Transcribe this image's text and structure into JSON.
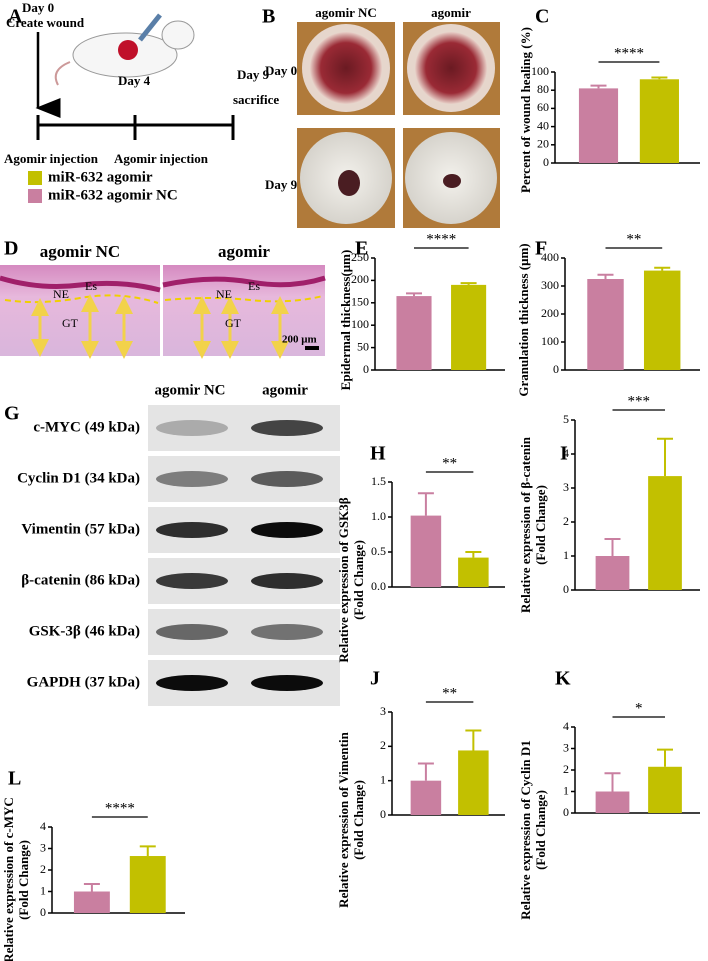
{
  "timeline": {
    "panel": "A",
    "day0": "Day 0",
    "create": "Create wound",
    "day4": "Day 4",
    "day9": "Day 9",
    "sacrifice": "sacrifice",
    "injection1": "Agomir injection",
    "injection2": "Agomir injection"
  },
  "legend": [
    {
      "label": "miR-632 agomir",
      "color": "#c2c000"
    },
    {
      "label": "miR-632 agomir NC",
      "color": "#c97fa0"
    }
  ],
  "wound_photos": {
    "panel": "B",
    "columns": [
      "agomir NC",
      "agomir"
    ],
    "rows": [
      "Day 0",
      "Day 9"
    ]
  },
  "histology": {
    "panel": "D",
    "images": [
      {
        "title": "agomir NC",
        "labels": [
          "NE",
          "Es",
          "GT"
        ]
      },
      {
        "title": "agomir",
        "labels": [
          "NE",
          "Es",
          "GT"
        ]
      }
    ],
    "scale": "200 μm"
  },
  "western_blot": {
    "panel": "G",
    "columns": [
      "agomir NC",
      "agomir"
    ],
    "rows": [
      "c-MYC (49 kDa)",
      "Cyclin D1 (34 kDa)",
      "Vimentin (57 kDa)",
      "β-catenin (86 kDa)",
      "GSK-3β (46 kDa)",
      "GAPDH (37 kDa)"
    ]
  },
  "chart_data": [
    {
      "type": "bar",
      "panel": "C",
      "ylabel": [
        "Percent of wound healing (%)"
      ],
      "values": [
        82,
        92
      ],
      "errors": [
        3,
        2
      ],
      "colors": [
        "#c97fa0",
        "#c2c000"
      ],
      "ylim": [
        0,
        100
      ],
      "yticks": [
        0,
        20,
        40,
        60,
        80,
        100
      ],
      "annotation": "****"
    },
    {
      "type": "bar",
      "panel": "E",
      "ylabel": [
        "Epidermal thickness(μm)"
      ],
      "values": [
        165,
        190
      ],
      "errors": [
        6,
        4
      ],
      "colors": [
        "#c97fa0",
        "#c2c000"
      ],
      "ylim": [
        0,
        250
      ],
      "yticks": [
        0,
        50,
        100,
        150,
        200,
        250
      ],
      "annotation": "****"
    },
    {
      "type": "bar",
      "panel": "F",
      "ylabel": [
        "Granulation thickness (μm)"
      ],
      "values": [
        325,
        355
      ],
      "errors": [
        15,
        10
      ],
      "colors": [
        "#c97fa0",
        "#c2c000"
      ],
      "ylim": [
        0,
        400
      ],
      "yticks": [
        0,
        100,
        200,
        300,
        400
      ],
      "annotation": "**"
    },
    {
      "type": "bar",
      "panel": "H",
      "ylabel": [
        "Relative expression of GSK3β",
        "(Fold Change)"
      ],
      "values": [
        1.02,
        0.42
      ],
      "errors": [
        0.32,
        0.08
      ],
      "colors": [
        "#c97fa0",
        "#c2c000"
      ],
      "ylim": [
        0,
        1.5
      ],
      "yticks": [
        {
          "value": 0,
          "label": "0.0"
        },
        0.5,
        {
          "value": 1,
          "label": "1.0"
        },
        1.5
      ],
      "annotation": "**"
    },
    {
      "type": "bar",
      "panel": "I",
      "ylabel": [
        "Relative expression of β-catenin",
        "(Fold Change)"
      ],
      "values": [
        1.0,
        3.35
      ],
      "errors": [
        0.5,
        1.1
      ],
      "colors": [
        "#c97fa0",
        "#c2c000"
      ],
      "ylim": [
        0,
        5
      ],
      "yticks": [
        0,
        1,
        2,
        3,
        4,
        5
      ],
      "annotation": "***"
    },
    {
      "type": "bar",
      "panel": "J",
      "ylabel": [
        "Relative expression of  Vimentin",
        "(Fold Change)"
      ],
      "values": [
        1.0,
        1.88
      ],
      "errors": [
        0.5,
        0.58
      ],
      "colors": [
        "#c97fa0",
        "#c2c000"
      ],
      "ylim": [
        0,
        3
      ],
      "yticks": [
        0,
        1,
        2,
        3
      ],
      "annotation": "**"
    },
    {
      "type": "bar",
      "panel": "K",
      "ylabel": [
        "Relative expression of Cyclin D1",
        "(Fold Change)"
      ],
      "values": [
        1.0,
        2.15
      ],
      "errors": [
        0.85,
        0.8
      ],
      "colors": [
        "#c97fa0",
        "#c2c000"
      ],
      "ylim": [
        0,
        4
      ],
      "yticks": [
        0,
        1,
        2,
        3,
        4
      ],
      "annotation": "*"
    },
    {
      "type": "bar",
      "panel": "L",
      "ylabel": [
        "Relative expression of c-MYC",
        "(Fold Change)"
      ],
      "values": [
        1.0,
        2.65
      ],
      "errors": [
        0.35,
        0.45
      ],
      "colors": [
        "#c97fa0",
        "#c2c000"
      ],
      "ylim": [
        0,
        4
      ],
      "yticks": [
        0,
        1,
        2,
        3,
        4
      ],
      "annotation": "****"
    }
  ]
}
